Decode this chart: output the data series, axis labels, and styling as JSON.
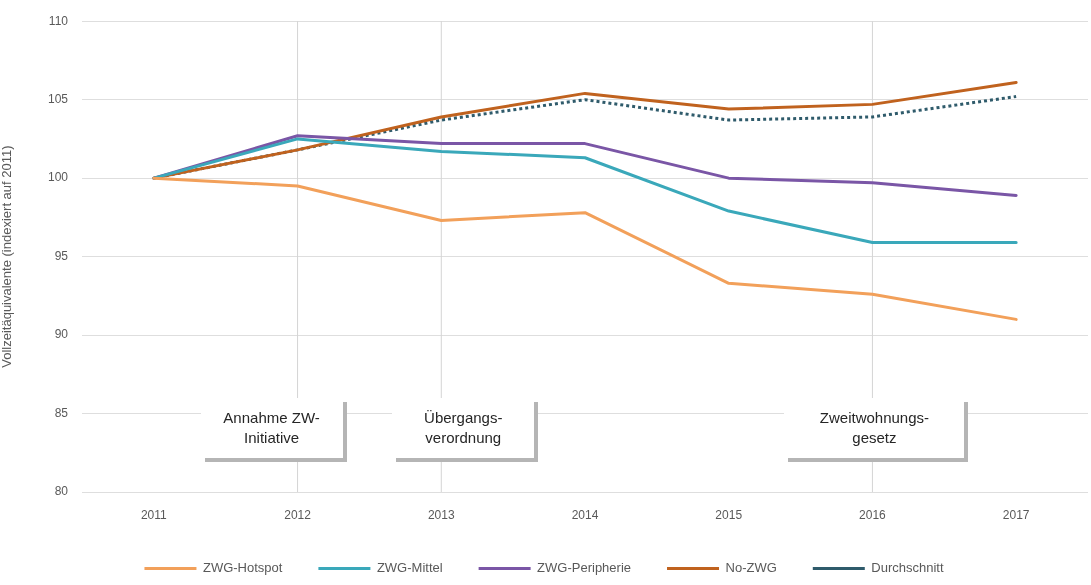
{
  "chart_data": {
    "type": "line",
    "ylabel": "Vollzeitäquivalente (indexiert auf 2011)",
    "x": [
      2011,
      2012,
      2013,
      2014,
      2015,
      2016,
      2017
    ],
    "xlim": [
      2010.5,
      2017.5
    ],
    "xticks": [
      2011,
      2012,
      2013,
      2014,
      2015,
      2016,
      2017
    ],
    "ylim": [
      80,
      110
    ],
    "yticks": [
      80,
      85,
      90,
      95,
      100,
      105,
      110
    ],
    "series": [
      {
        "name": "ZWG-Hotspot",
        "color": "#f2a05a",
        "values": [
          100,
          99.5,
          97.3,
          97.8,
          93.3,
          92.6,
          91.0
        ]
      },
      {
        "name": "ZWG-Mittel",
        "color": "#3aa8ba",
        "values": [
          100,
          102.5,
          101.7,
          101.3,
          97.9,
          95.9,
          95.9
        ]
      },
      {
        "name": "ZWG-Peripherie",
        "color": "#7a56a6",
        "values": [
          100,
          102.7,
          102.2,
          102.2,
          100.0,
          99.7,
          98.9
        ]
      },
      {
        "name": "No-ZWG",
        "color": "#c0621e",
        "values": [
          100,
          101.8,
          103.9,
          105.4,
          104.4,
          104.7,
          106.1
        ]
      },
      {
        "name": "Durchschnitt",
        "color": "#2f5b6b",
        "line_style": "dotted",
        "values": [
          100,
          101.8,
          103.7,
          105.0,
          103.7,
          103.9,
          105.2
        ]
      }
    ],
    "ref_lines": [
      {
        "axis": "x",
        "value": 2012,
        "label": "Annahme ZW-Initiative",
        "color": "#d4d4d4"
      },
      {
        "axis": "x",
        "value": 2013,
        "label": "Übergangs-verordnung",
        "color": "#d4d4d4"
      },
      {
        "axis": "x",
        "value": 2016,
        "label": "Zweitwohnungs-gesetz",
        "color": "#d4d4d4"
      }
    ],
    "grid": "y",
    "legend": "bottom",
    "marker": "none",
    "line_style": "solid"
  }
}
